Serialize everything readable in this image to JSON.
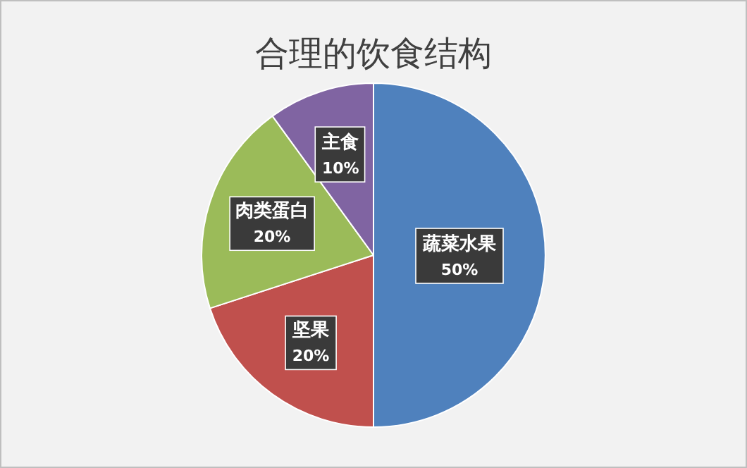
{
  "chart_data": {
    "type": "pie",
    "title": "合理的饮食结构",
    "categories": [
      "蔬菜水果",
      "坚果",
      "肉类蛋白",
      "主食"
    ],
    "values": [
      50,
      20,
      20,
      10
    ],
    "value_labels": [
      "50%",
      "20%",
      "20%",
      "10%"
    ],
    "colors": [
      "#4f81bd",
      "#c0504d",
      "#9bbb59",
      "#8064a2"
    ]
  }
}
